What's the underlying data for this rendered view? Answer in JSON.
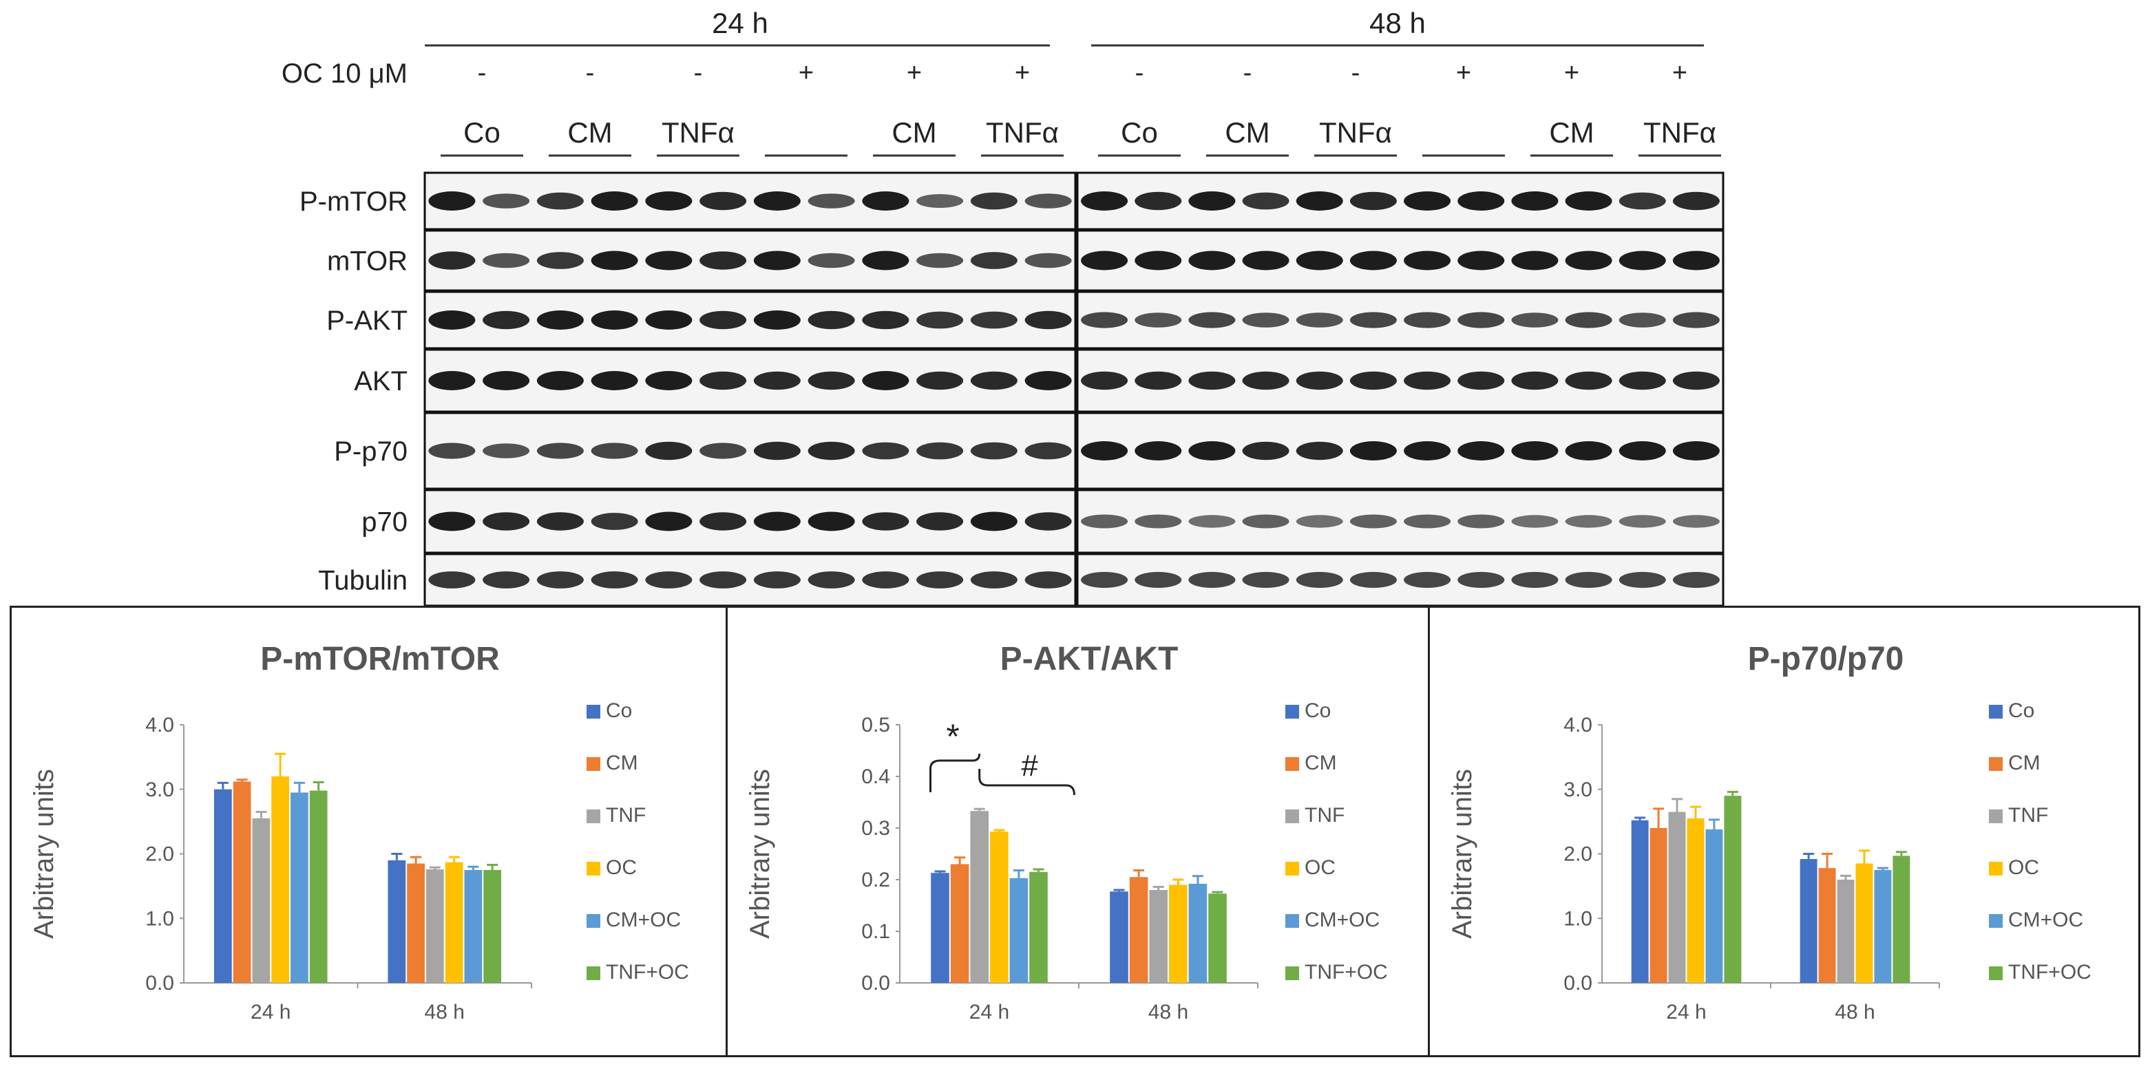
{
  "blot": {
    "time_labels": [
      "24 h",
      "48 h"
    ],
    "oc_label": "OC  10 μM",
    "oc_signs": [
      "-",
      "-",
      "-",
      "+",
      "+",
      "+",
      "-",
      "-",
      "-",
      "+",
      "+",
      "+"
    ],
    "group_labels": [
      "Co",
      "CM",
      "TNFα",
      "",
      "CM",
      "TNFα",
      "Co",
      "CM",
      "TNFα",
      "",
      "CM",
      "TNFα"
    ],
    "rows": [
      "P-mTOR",
      "mTOR",
      "P-AKT",
      "AKT",
      "P-p70",
      "p70",
      "Tubulin"
    ],
    "colors": {
      "band": "#111111",
      "background": "#f4f4f4",
      "border": "#111111"
    }
  },
  "chart_data": [
    {
      "type": "bar",
      "title": "P-mTOR/mTOR",
      "ylabel": "Arbitrary units",
      "xlabel": "",
      "categories": [
        "24 h",
        "48 h"
      ],
      "ylim": [
        0,
        4
      ],
      "yticks": [
        "0.0",
        "1.0",
        "2.0",
        "3.0",
        "4.0"
      ],
      "series": [
        {
          "name": "Co",
          "color": "#4472c4",
          "values": [
            3.0,
            1.9
          ],
          "errors": [
            0.1,
            0.1
          ]
        },
        {
          "name": "CM",
          "color": "#ed7d31",
          "values": [
            3.12,
            1.85
          ],
          "errors": [
            0.03,
            0.1
          ]
        },
        {
          "name": "TNF",
          "color": "#a5a5a5",
          "values": [
            2.55,
            1.76
          ],
          "errors": [
            0.1,
            0.03
          ]
        },
        {
          "name": "OC",
          "color": "#ffc000",
          "values": [
            3.2,
            1.87
          ],
          "errors": [
            0.35,
            0.08
          ]
        },
        {
          "name": "CM+OC",
          "color": "#5b9bd5",
          "values": [
            2.95,
            1.75
          ],
          "errors": [
            0.15,
            0.05
          ]
        },
        {
          "name": "TNF+OC",
          "color": "#70ad47",
          "values": [
            2.98,
            1.75
          ],
          "errors": [
            0.13,
            0.08
          ]
        }
      ],
      "annotations": []
    },
    {
      "type": "bar",
      "title": "P-AKT/AKT",
      "ylabel": "Arbitrary units",
      "xlabel": "",
      "categories": [
        "24 h",
        "48 h"
      ],
      "ylim": [
        0,
        0.5
      ],
      "yticks": [
        "0.0",
        "0.1",
        "0.2",
        "0.3",
        "0.4",
        "0.5"
      ],
      "series": [
        {
          "name": "Co",
          "color": "#4472c4",
          "values": [
            0.213,
            0.177
          ],
          "errors": [
            0.003,
            0.003
          ]
        },
        {
          "name": "CM",
          "color": "#ed7d31",
          "values": [
            0.23,
            0.205
          ],
          "errors": [
            0.013,
            0.013
          ]
        },
        {
          "name": "TNF",
          "color": "#a5a5a5",
          "values": [
            0.333,
            0.18
          ],
          "errors": [
            0.004,
            0.006
          ]
        },
        {
          "name": "OC",
          "color": "#ffc000",
          "values": [
            0.293,
            0.19
          ],
          "errors": [
            0.003,
            0.01
          ]
        },
        {
          "name": "CM+OC",
          "color": "#5b9bd5",
          "values": [
            0.203,
            0.192
          ],
          "errors": [
            0.015,
            0.015
          ]
        },
        {
          "name": "TNF+OC",
          "color": "#70ad47",
          "values": [
            0.215,
            0.173
          ],
          "errors": [
            0.005,
            0.003
          ]
        }
      ],
      "annotations": [
        "*",
        "#"
      ]
    },
    {
      "type": "bar",
      "title": "P-p70/p70",
      "ylabel": "Arbitrary units",
      "xlabel": "",
      "categories": [
        "24 h",
        "48 h"
      ],
      "ylim": [
        0,
        4
      ],
      "yticks": [
        "0.0",
        "1.0",
        "2.0",
        "3.0",
        "4.0"
      ],
      "series": [
        {
          "name": "Co",
          "color": "#4472c4",
          "values": [
            2.52,
            1.92
          ],
          "errors": [
            0.04,
            0.08
          ]
        },
        {
          "name": "CM",
          "color": "#ed7d31",
          "values": [
            2.4,
            1.78
          ],
          "errors": [
            0.3,
            0.22
          ]
        },
        {
          "name": "TNF",
          "color": "#a5a5a5",
          "values": [
            2.65,
            1.6
          ],
          "errors": [
            0.2,
            0.06
          ]
        },
        {
          "name": "OC",
          "color": "#ffc000",
          "values": [
            2.55,
            1.85
          ],
          "errors": [
            0.18,
            0.2
          ]
        },
        {
          "name": "CM+OC",
          "color": "#5b9bd5",
          "values": [
            2.38,
            1.75
          ],
          "errors": [
            0.15,
            0.03
          ]
        },
        {
          "name": "TNF+OC",
          "color": "#70ad47",
          "values": [
            2.9,
            1.97
          ],
          "errors": [
            0.06,
            0.06
          ]
        }
      ],
      "annotations": []
    }
  ]
}
